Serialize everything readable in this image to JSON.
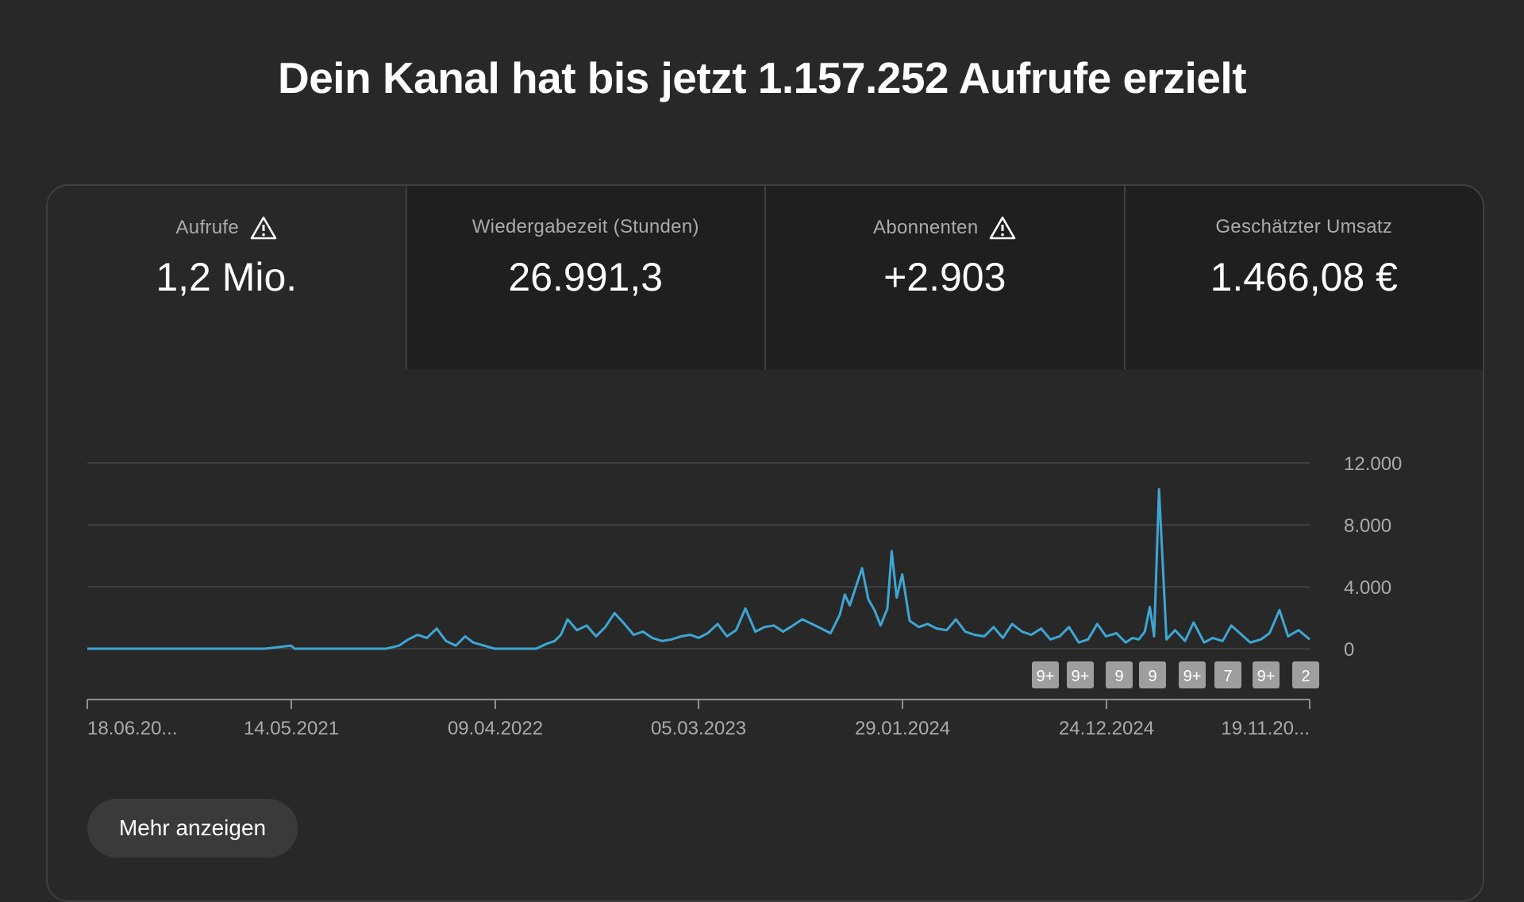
{
  "headline": "Dein Kanal hat bis jetzt 1.157.252 Aufrufe erzielt",
  "tabs": [
    {
      "label": "Aufrufe",
      "value": "1,2 Mio.",
      "warning": true,
      "active": true
    },
    {
      "label": "Wiedergabezeit (Stunden)",
      "value": "26.991,3",
      "warning": false,
      "active": false
    },
    {
      "label": "Abonnenten",
      "value": "+2.903",
      "warning": true,
      "active": false
    },
    {
      "label": "Geschätzter Umsatz",
      "value": "1.466,08 €",
      "warning": false,
      "active": false
    }
  ],
  "more_button": "Mehr anzeigen",
  "colors": {
    "line": "#3ea6d3",
    "background": "#282828",
    "badge": "#9e9e9e"
  },
  "chart_data": {
    "type": "line",
    "x_ticks": [
      "18.06.20...",
      "14.05.2021",
      "09.04.2022",
      "05.03.2023",
      "29.01.2024",
      "24.12.2024",
      "19.11.20..."
    ],
    "y_ticks": [
      "12.000",
      "8.000",
      "4.000",
      "0"
    ],
    "ylim": [
      0,
      12000
    ],
    "grid": true,
    "markers": [
      "9+",
      "9+",
      "9",
      "9",
      "9+",
      "7",
      "9+",
      "2"
    ],
    "x": [
      "2020-06-18",
      "2020-08-01",
      "2020-10-01",
      "2020-12-01",
      "2021-02-01",
      "2021-04-01",
      "2021-05-14",
      "2021-05-20",
      "2021-07-01",
      "2021-09-01",
      "2021-10-15",
      "2021-11-05",
      "2021-11-20",
      "2021-12-05",
      "2021-12-20",
      "2022-01-05",
      "2022-01-20",
      "2022-02-05",
      "2022-02-20",
      "2022-03-05",
      "2022-04-09",
      "2022-05-15",
      "2022-06-15",
      "2022-07-01",
      "2022-07-15",
      "2022-07-25",
      "2022-08-05",
      "2022-08-20",
      "2022-09-05",
      "2022-09-20",
      "2022-10-05",
      "2022-10-20",
      "2022-11-05",
      "2022-11-20",
      "2022-12-05",
      "2022-12-20",
      "2023-01-05",
      "2023-01-20",
      "2023-02-05",
      "2023-02-20",
      "2023-03-05",
      "2023-03-20",
      "2023-04-05",
      "2023-04-20",
      "2023-05-05",
      "2023-05-20",
      "2023-06-05",
      "2023-06-20",
      "2023-07-05",
      "2023-07-20",
      "2023-08-05",
      "2023-08-20",
      "2023-09-05",
      "2023-09-20",
      "2023-10-05",
      "2023-10-20",
      "2023-10-28",
      "2023-11-05",
      "2023-11-15",
      "2023-11-25",
      "2023-12-05",
      "2023-12-15",
      "2023-12-25",
      "2024-01-05",
      "2024-01-12",
      "2024-01-20",
      "2024-01-29",
      "2024-02-10",
      "2024-02-25",
      "2024-03-10",
      "2024-03-25",
      "2024-04-10",
      "2024-04-25",
      "2024-05-10",
      "2024-05-25",
      "2024-06-10",
      "2024-06-25",
      "2024-07-10",
      "2024-07-25",
      "2024-08-10",
      "2024-08-25",
      "2024-09-10",
      "2024-09-25",
      "2024-10-10",
      "2024-10-25",
      "2024-11-10",
      "2024-11-25",
      "2024-12-10",
      "2024-12-24",
      "2025-01-10",
      "2025-01-25",
      "2025-02-05",
      "2025-02-15",
      "2025-02-25",
      "2025-03-05",
      "2025-03-12",
      "2025-03-20",
      "2025-04-01",
      "2025-04-15",
      "2025-05-01",
      "2025-05-15",
      "2025-06-01",
      "2025-06-15",
      "2025-07-01",
      "2025-07-15",
      "2025-08-01",
      "2025-08-15",
      "2025-09-01",
      "2025-09-15",
      "2025-10-01",
      "2025-10-15",
      "2025-11-01",
      "2025-11-19"
    ],
    "y": [
      0,
      0,
      0,
      0,
      0,
      0,
      200,
      0,
      0,
      0,
      0,
      200,
      600,
      900,
      700,
      1300,
      500,
      200,
      800,
      400,
      0,
      0,
      0,
      300,
      500,
      900,
      1900,
      1200,
      1500,
      800,
      1400,
      2300,
      1600,
      900,
      1100,
      700,
      500,
      600,
      800,
      900,
      700,
      1000,
      1600,
      800,
      1200,
      2600,
      1100,
      1400,
      1500,
      1100,
      1500,
      1900,
      1600,
      1300,
      1000,
      2200,
      3500,
      2800,
      4000,
      5200,
      3200,
      2500,
      1500,
      2600,
      6300,
      3300,
      4800,
      1800,
      1400,
      1600,
      1300,
      1200,
      1900,
      1100,
      900,
      800,
      1400,
      700,
      1600,
      1100,
      900,
      1300,
      600,
      800,
      1400,
      400,
      600,
      1600,
      800,
      1000,
      400,
      700,
      600,
      1100,
      2700,
      800,
      10300,
      600,
      1200,
      500,
      1700,
      400,
      700,
      500,
      1500,
      900,
      400,
      600,
      1000,
      2500,
      800,
      1200,
      600
    ]
  }
}
